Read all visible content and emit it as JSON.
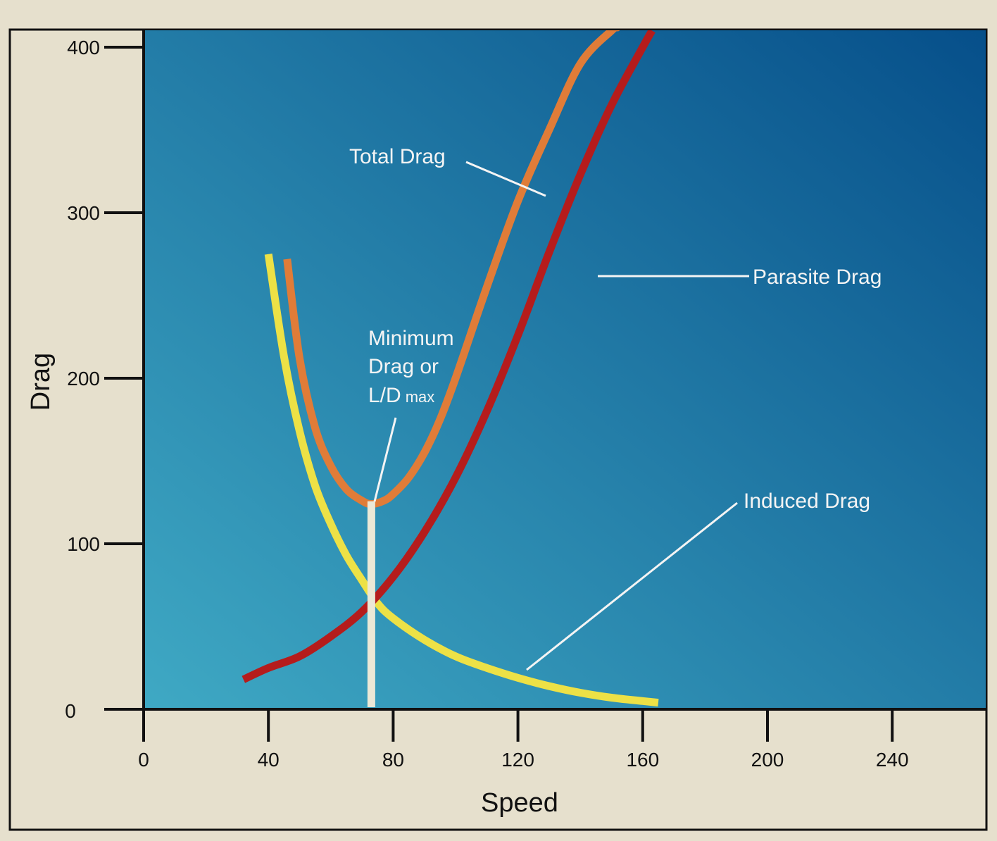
{
  "chart_data": {
    "type": "line",
    "title": "",
    "xlabel": "Speed",
    "ylabel": "Drag",
    "xlim": [
      0,
      270
    ],
    "ylim": [
      0,
      400
    ],
    "x_ticks": [
      0,
      40,
      80,
      120,
      160,
      200,
      240
    ],
    "y_ticks": [
      0,
      100,
      200,
      300,
      400
    ],
    "grid": false,
    "background_gradient": [
      "#3fa9c4",
      "#064f8a"
    ],
    "series": [
      {
        "name": "Induced Drag",
        "color": "#ede146",
        "x": [
          40,
          45,
          50,
          55,
          60,
          65,
          70,
          75,
          80,
          90,
          100,
          110,
          120,
          130,
          140,
          150,
          160,
          165
        ],
        "values": [
          275,
          213,
          168,
          135,
          112,
          93,
          78,
          64,
          55,
          42,
          32,
          25,
          19,
          14,
          10,
          7,
          5,
          4
        ]
      },
      {
        "name": "Parasite Drag",
        "color": "#b51c1c",
        "x": [
          32,
          40,
          50,
          60,
          70,
          80,
          90,
          100,
          110,
          120,
          130,
          140,
          150,
          160,
          163
        ],
        "values": [
          18,
          25,
          32,
          44,
          59,
          80,
          107,
          140,
          180,
          226,
          276,
          323,
          365,
          400,
          410
        ]
      },
      {
        "name": "Total Drag",
        "color": "#e07c38",
        "x": [
          46,
          50,
          55,
          60,
          65,
          70,
          73,
          77,
          80,
          85,
          90,
          95,
          100,
          110,
          120,
          130,
          140,
          150,
          152
        ],
        "values": [
          272,
          212,
          170,
          147,
          133,
          126,
          124,
          126,
          130,
          140,
          155,
          175,
          200,
          255,
          307,
          350,
          390,
          410,
          412
        ]
      }
    ],
    "min_drag_marker": {
      "x": 73,
      "y": 124
    },
    "annotations": [
      {
        "text": "Total Drag"
      },
      {
        "text": "Parasite Drag"
      },
      {
        "text": "Induced Drag"
      },
      {
        "lines": [
          "Minimum",
          "Drag or",
          "L/D"
        ],
        "sub": "max"
      }
    ]
  }
}
